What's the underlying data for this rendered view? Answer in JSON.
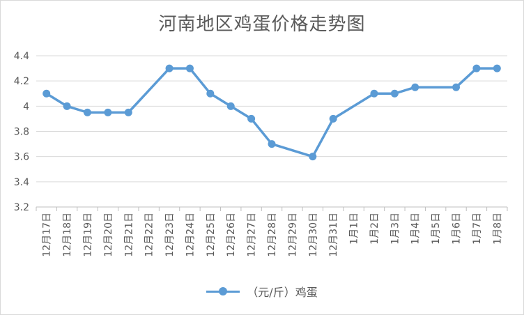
{
  "chart_data": {
    "type": "line",
    "title": "河南地区鸡蛋价格走势图",
    "categories": [
      "12月17日",
      "12月18日",
      "12月19日",
      "12月20日",
      "12月21日",
      "12月22日",
      "12月23日",
      "12月24日",
      "12月25日",
      "12月26日",
      "12月27日",
      "12月28日",
      "12月29日",
      "12月30日",
      "12月31日",
      "1月1日",
      "1月2日",
      "1月3日",
      "1月4日",
      "1月5日",
      "1月6日",
      "1月7日",
      "1月8日"
    ],
    "series": [
      {
        "name": "（元/斤）鸡蛋",
        "color": "#5b9bd5",
        "values": [
          {
            "x": "12月17日",
            "y": 4.1
          },
          {
            "x": "12月18日",
            "y": 4.0
          },
          {
            "x": "12月19日",
            "y": 3.95
          },
          {
            "x": "12月20日",
            "y": 3.95
          },
          {
            "x": "12月21日",
            "y": 3.95
          },
          {
            "x": "12月23日",
            "y": 4.3
          },
          {
            "x": "12月24日",
            "y": 4.3
          },
          {
            "x": "12月25日",
            "y": 4.1
          },
          {
            "x": "12月26日",
            "y": 4.0
          },
          {
            "x": "12月27日",
            "y": 3.9
          },
          {
            "x": "12月28日",
            "y": 3.7
          },
          {
            "x": "12月30日",
            "y": 3.6
          },
          {
            "x": "12月31日",
            "y": 3.9
          },
          {
            "x": "1月2日",
            "y": 4.1
          },
          {
            "x": "1月3日",
            "y": 4.1
          },
          {
            "x": "1月4日",
            "y": 4.15
          },
          {
            "x": "1月6日",
            "y": 4.15
          },
          {
            "x": "1月7日",
            "y": 4.3
          },
          {
            "x": "1月8日",
            "y": 4.3
          }
        ]
      }
    ],
    "ylim": [
      3.2,
      4.4
    ],
    "yticks": [
      "3.2",
      "3.4",
      "3.6",
      "3.8",
      "4",
      "4.2",
      "4.4"
    ],
    "grid": true,
    "legend": "bottom"
  }
}
